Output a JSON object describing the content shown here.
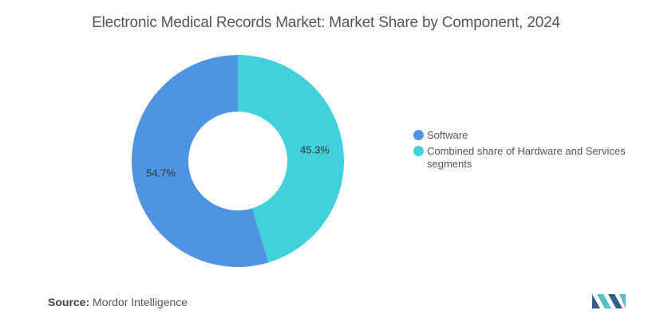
{
  "chart_data": {
    "type": "pie",
    "title": "Electronic Medical Records Market: Market Share by Component, 2024",
    "categories": [
      "Software",
      "Combined share of Hardware and Services segments"
    ],
    "values": [
      54.7,
      45.3
    ],
    "data_labels": [
      "54.7%",
      "45.3%"
    ],
    "donut": true,
    "legend_position": "right",
    "colors": [
      "#4f94e3",
      "#41d1dc"
    ]
  },
  "source": {
    "label": "Source:",
    "text": "Mordor Intelligence"
  },
  "logo": {
    "icon": "mordor-intelligence-logo-icon",
    "colors": [
      "#2f5f8c",
      "#4fc1c7"
    ]
  }
}
